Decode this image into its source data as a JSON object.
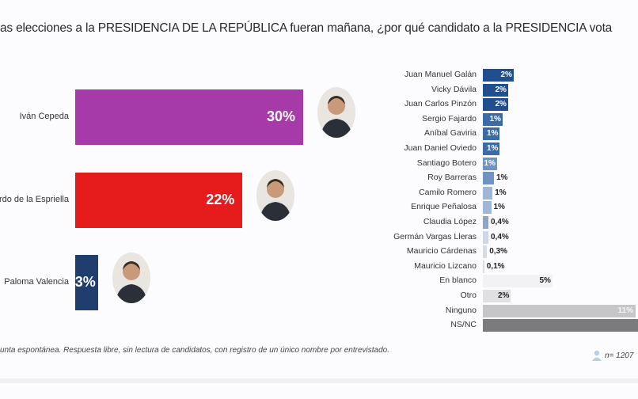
{
  "title": "as elecciones a la PRESIDENCIA DE LA REPÚBLICA fueran mañana, ¿por qué candidato a la PRESIDENCIA vota",
  "footnote": "unta espontánea. Respuesta libre, sin lectura de candidatos, con registro de un único nombre por entrevistado.",
  "sample": "n= 1207",
  "chart_data": [
    {
      "type": "bar",
      "orientation": "horizontal",
      "unit": "%",
      "categories": [
        "Iván Cepeda",
        "rdo de la Espriella",
        "Paloma Valencia"
      ],
      "values": [
        30,
        22,
        3
      ],
      "labels": [
        "30%",
        "22%",
        "3%"
      ],
      "colors": [
        "#a63aa9",
        "#e61c1c",
        "#1f3e6e"
      ]
    },
    {
      "type": "bar",
      "orientation": "horizontal",
      "unit": "%",
      "items": [
        {
          "name": "Juan Manuel Galán",
          "value": 2.2,
          "label": "2%",
          "color": "#1f4f8e",
          "inside": true
        },
        {
          "name": "Vicky Dávila",
          "value": 1.8,
          "label": "2%",
          "color": "#1f4f8e",
          "inside": true
        },
        {
          "name": "Juan Carlos Pinzón",
          "value": 1.8,
          "label": "2%",
          "color": "#1f4f8e",
          "inside": true
        },
        {
          "name": "Sergio Fajardo",
          "value": 1.4,
          "label": "1%",
          "color": "#3b6aa6",
          "inside": true
        },
        {
          "name": "Aníbal Gaviria",
          "value": 1.2,
          "label": "1%",
          "color": "#3b6aa6",
          "inside": true
        },
        {
          "name": "Juan Daniel Oviedo",
          "value": 1.2,
          "label": "1%",
          "color": "#3b6aa6",
          "inside": true
        },
        {
          "name": "Santiago Botero",
          "value": 1.0,
          "label": "1%",
          "color": "#6f93c2",
          "inside": true
        },
        {
          "name": "Roy Barreras",
          "value": 0.8,
          "label": "1%",
          "color": "#6f93c2",
          "inside": false
        },
        {
          "name": "Camilo Romero",
          "value": 0.7,
          "label": "1%",
          "color": "#9fb6d6",
          "inside": false
        },
        {
          "name": "Enrique Peñalosa",
          "value": 0.6,
          "label": "1%",
          "color": "#9fb6d6",
          "inside": false
        },
        {
          "name": "Claudia López",
          "value": 0.4,
          "label": "0,4%",
          "color": "#8fa5c4",
          "inside": false
        },
        {
          "name": "Germán Vargas Lleras",
          "value": 0.4,
          "label": "0,4%",
          "color": "#cfd9e6",
          "inside": false
        },
        {
          "name": "Mauricio Cárdenas",
          "value": 0.3,
          "label": "0,3%",
          "color": "#d7dbe2",
          "inside": false
        },
        {
          "name": "Mauricio Lizcano",
          "value": 0.1,
          "label": "0,1%",
          "color": "#d7dbe2",
          "inside": false
        },
        {
          "name": "En blanco",
          "value": 5,
          "label": "5%",
          "color": "#f2f2f4",
          "inside": true,
          "dark": true
        },
        {
          "name": "Otro",
          "value": 2,
          "label": "2%",
          "color": "#e0e0e2",
          "inside": true,
          "dark": true
        },
        {
          "name": "Ninguno",
          "value": 11,
          "label": "11%",
          "color": "#c6c6c8",
          "inside": true
        },
        {
          "name": "NS/NC",
          "value": 13,
          "label": "",
          "color": "#7b7b7d",
          "inside": true
        }
      ]
    }
  ]
}
